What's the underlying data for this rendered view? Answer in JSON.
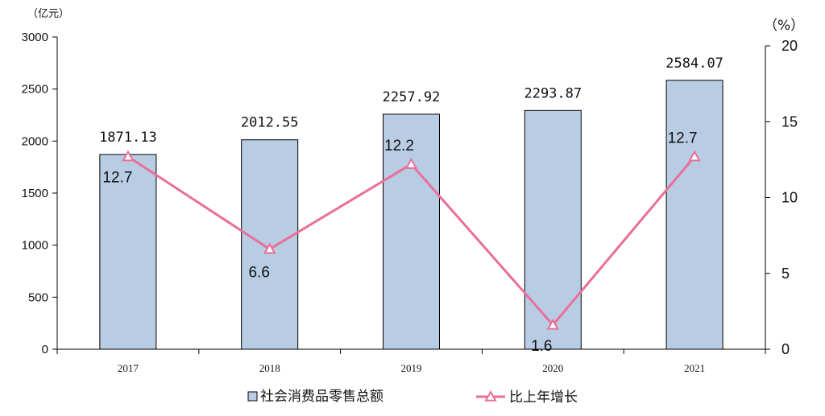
{
  "chart_data": {
    "type": "bar",
    "categories": [
      "2017",
      "2018",
      "2019",
      "2020",
      "2021"
    ],
    "series": [
      {
        "name": "社会消费品零售总额",
        "type": "bar",
        "axis": "left",
        "values": [
          1871.13,
          2012.55,
          2257.92,
          2293.87,
          2584.07
        ],
        "labels": [
          "1871.13",
          "2012.55",
          "2257.92",
          "2293.87",
          "2584.07"
        ],
        "color": "#b8cce4",
        "stroke": "#000000"
      },
      {
        "name": "比上年增长",
        "type": "line",
        "axis": "right",
        "marker": "triangle",
        "values": [
          12.7,
          6.6,
          12.2,
          1.6,
          12.7
        ],
        "labels": [
          "12.7",
          "6.6",
          "12.2",
          "1.6",
          "12.7"
        ],
        "color": "#e96f9a"
      }
    ],
    "y_left": {
      "unit": "（亿元）",
      "ylim": [
        0,
        3000
      ],
      "ticks": [
        "0",
        "500",
        "1000",
        "1500",
        "2000",
        "2500",
        "3000"
      ]
    },
    "y_right": {
      "unit": "（%）",
      "ylim": [
        0,
        20
      ],
      "ticks": [
        "0",
        "5",
        "10",
        "15",
        "20"
      ]
    },
    "grid": false,
    "legend_position": "bottom"
  }
}
